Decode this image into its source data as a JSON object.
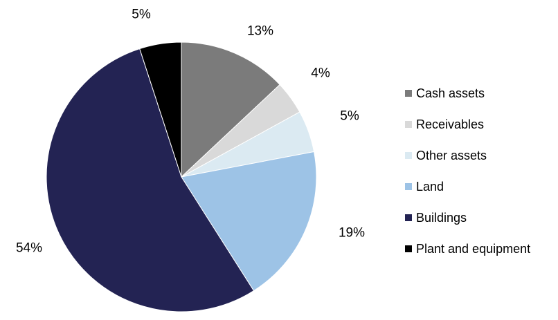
{
  "chart_data": {
    "type": "pie",
    "categories": [
      "Cash assets",
      "Receivables",
      "Other assets",
      "Land",
      "Buildings",
      "Plant and equipment"
    ],
    "values": [
      13,
      4,
      5,
      19,
      54,
      5
    ],
    "labels": [
      "13%",
      "4%",
      "5%",
      "19%",
      "54%",
      "5%"
    ],
    "colors": [
      "#7b7b7b",
      "#d9d9d9",
      "#dbeaf2",
      "#9dc3e6",
      "#232353",
      "#000000"
    ],
    "legend_position": "right",
    "title": ""
  }
}
